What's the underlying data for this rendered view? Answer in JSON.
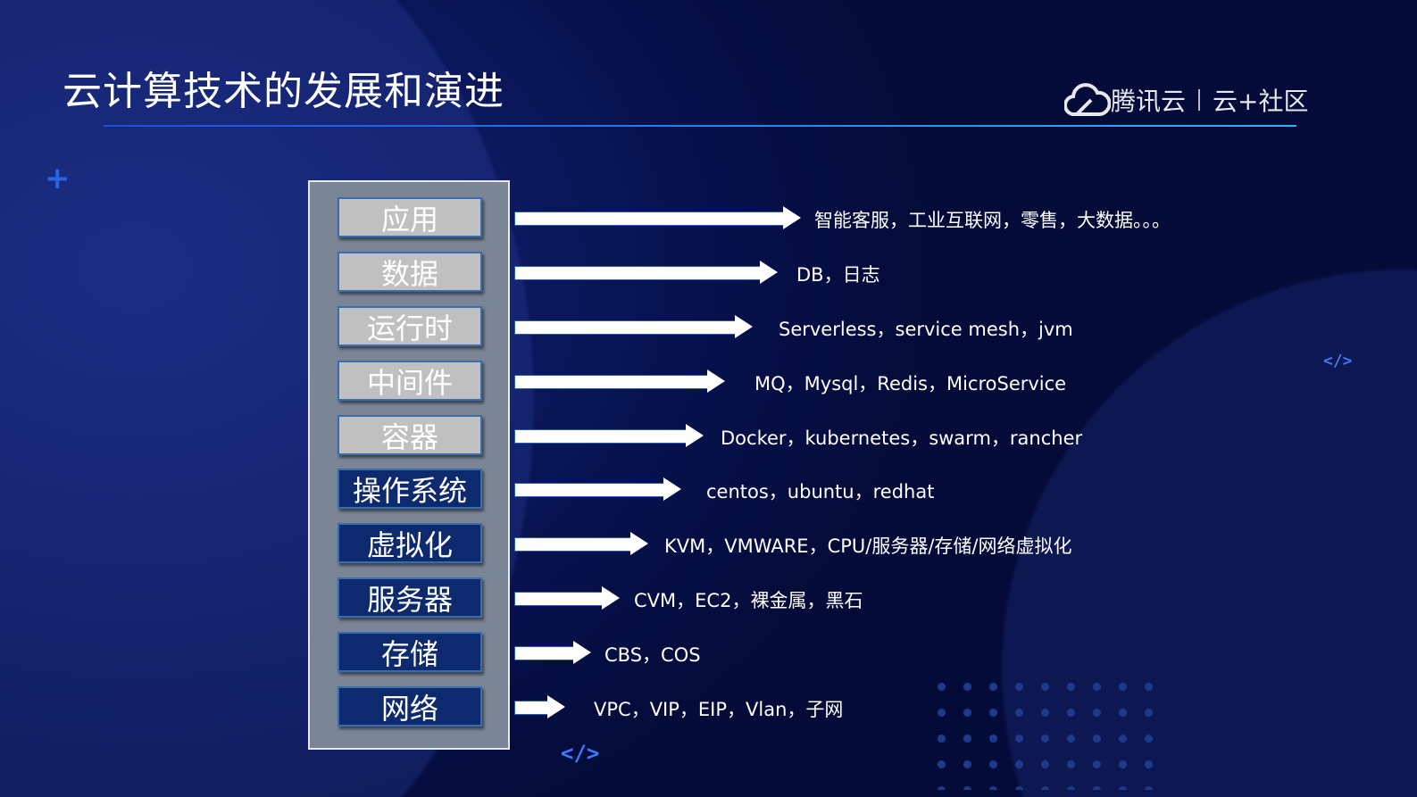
{
  "title": "云计算技术的发展和演进",
  "logo": {
    "brand": "腾讯云",
    "community": "云+社区"
  },
  "decor": {
    "code_tag": "</>"
  },
  "layers": [
    {
      "label": "应用",
      "desc": "智能客服，工业互联网，零售，大数据。。。",
      "style": "light"
    },
    {
      "label": "数据",
      "desc": "DB，日志",
      "style": "light"
    },
    {
      "label": "运行时",
      "desc": "Serverless，service mesh，jvm",
      "style": "light"
    },
    {
      "label": "中间件",
      "desc": "MQ，Mysql，Redis，MicroService",
      "style": "light"
    },
    {
      "label": "容器",
      "desc": "Docker，kubernetes，swarm，rancher",
      "style": "light"
    },
    {
      "label": "操作系统",
      "desc": "centos，ubuntu，redhat",
      "style": "dark"
    },
    {
      "label": "虚拟化",
      "desc": "KVM，VMWARE，CPU/服务器/存储/网络虚拟化",
      "style": "dark"
    },
    {
      "label": "服务器",
      "desc": "CVM，EC2，裸金属，黑石",
      "style": "dark"
    },
    {
      "label": "存储",
      "desc": "CBS，COS",
      "style": "dark"
    },
    {
      "label": "网络",
      "desc": "VPC，VIP，EIP，Vlan，子网",
      "style": "dark"
    }
  ]
}
